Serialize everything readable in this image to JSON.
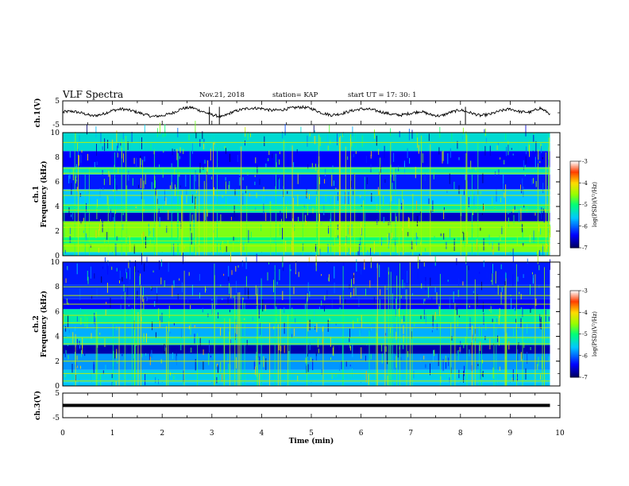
{
  "header": {
    "title": "VLF Spectra",
    "date": "Nov.21, 2018",
    "station": "station= KAP",
    "start": "start  UT =   17: 30: 1"
  },
  "chart_data": [
    {
      "type": "line",
      "name": "ch1-voltage",
      "ylabel": "ch.1(V)",
      "ylim": [
        -5,
        5
      ],
      "yticks": [
        -5,
        5
      ],
      "xlim": [
        0,
        10
      ],
      "x": [
        0,
        0.2,
        0.4,
        0.6,
        0.8,
        1.0,
        1.2,
        1.4,
        1.6,
        1.8,
        2.0,
        2.2,
        2.4,
        2.6,
        2.8,
        3.0,
        3.2,
        3.4,
        3.6,
        3.8,
        4.0,
        4.2,
        4.4,
        4.6,
        4.8,
        5.0,
        5.2,
        5.4,
        5.6,
        5.8,
        6.0,
        6.2,
        6.4,
        6.6,
        6.8,
        7.0,
        7.2,
        7.4,
        7.6,
        7.8,
        8.0,
        8.2,
        8.4,
        8.6,
        8.8,
        9.0,
        9.2,
        9.4,
        9.6,
        9.8
      ],
      "y": [
        0.4,
        0.6,
        -0.2,
        -1.4,
        -0.6,
        1.0,
        1.6,
        0.8,
        -0.4,
        -1.6,
        -1.2,
        -0.2,
        1.8,
        2.2,
        0.6,
        -0.8,
        -1.8,
        0.2,
        1.4,
        2.0,
        1.8,
        1.0,
        1.2,
        2.0,
        2.4,
        1.8,
        0.0,
        -1.0,
        -0.4,
        0.8,
        1.6,
        1.4,
        0.4,
        -0.6,
        -1.0,
        -0.2,
        0.6,
        -0.8,
        -1.4,
        0.2,
        1.2,
        0.0,
        -1.2,
        -0.6,
        0.8,
        1.6,
        0.4,
        0.2,
        2.0,
        -0.4
      ]
    },
    {
      "type": "heatmap",
      "name": "ch1-spectrogram",
      "ylabel": "ch.1\nFrequency (kHz)",
      "ylim": [
        0,
        10
      ],
      "yticks": [
        0,
        2,
        4,
        6,
        8,
        10
      ],
      "xlim": [
        0,
        10
      ],
      "data_end_min": 9.8,
      "colorbar": {
        "label": "log(PSD)(V²/Hz)",
        "range": [
          -7,
          -3
        ],
        "ticks": [
          -7,
          -6,
          -5,
          -4,
          -3
        ]
      },
      "bands_khz": [
        {
          "from": 0.0,
          "to": 0.3,
          "level": -5.5
        },
        {
          "from": 0.3,
          "to": 1.0,
          "level": -4.6
        },
        {
          "from": 1.0,
          "to": 1.5,
          "level": -5.0
        },
        {
          "from": 1.5,
          "to": 2.8,
          "level": -4.6
        },
        {
          "from": 2.8,
          "to": 3.5,
          "level": -6.6
        },
        {
          "from": 3.5,
          "to": 4.2,
          "level": -5.2
        },
        {
          "from": 4.2,
          "to": 5.4,
          "level": -5.6
        },
        {
          "from": 5.4,
          "to": 6.6,
          "level": -6.3
        },
        {
          "from": 6.6,
          "to": 7.2,
          "level": -5.3
        },
        {
          "from": 7.2,
          "to": 8.5,
          "level": -6.4
        },
        {
          "from": 8.5,
          "to": 10.0,
          "level": -5.4
        }
      ],
      "line_freqs_khz": [
        0.8,
        1.2,
        2.3,
        2.6,
        3.7,
        4.1,
        4.9,
        5.3,
        6.7,
        7.1,
        9.2
      ]
    },
    {
      "type": "heatmap",
      "name": "ch2-spectrogram",
      "ylabel": "ch.2\nFrequency (kHz)",
      "ylim": [
        0,
        10
      ],
      "yticks": [
        0,
        2,
        4,
        6,
        8,
        10
      ],
      "xlim": [
        0,
        10
      ],
      "data_end_min": 9.8,
      "colorbar": {
        "label": "log(PSD)(V²/Hz)",
        "range": [
          -7,
          -3
        ],
        "ticks": [
          -7,
          -6,
          -5,
          -4,
          -3
        ]
      },
      "bands_khz": [
        {
          "from": 0.0,
          "to": 0.3,
          "level": -5.6
        },
        {
          "from": 0.3,
          "to": 1.3,
          "level": -5.5
        },
        {
          "from": 1.3,
          "to": 2.6,
          "level": -5.8
        },
        {
          "from": 2.6,
          "to": 3.3,
          "level": -6.7
        },
        {
          "from": 3.3,
          "to": 4.0,
          "level": -5.4
        },
        {
          "from": 4.0,
          "to": 5.0,
          "level": -5.7
        },
        {
          "from": 5.0,
          "to": 6.2,
          "level": -5.2
        },
        {
          "from": 6.2,
          "to": 7.0,
          "level": -6.4
        },
        {
          "from": 7.0,
          "to": 8.2,
          "level": -6.2
        },
        {
          "from": 8.2,
          "to": 10.0,
          "level": -6.3
        }
      ],
      "line_freqs_khz": [
        0.4,
        1.0,
        2.0,
        3.4,
        3.9,
        4.7,
        5.1,
        5.7,
        6.6,
        7.3,
        8.0
      ]
    },
    {
      "type": "line",
      "name": "ch3-voltage",
      "ylabel": "ch.3(V)",
      "ylim": [
        -5,
        5
      ],
      "yticks": [
        -5,
        5
      ],
      "xlim": [
        0,
        10
      ],
      "x": [
        0,
        9.8
      ],
      "y": [
        0.0,
        0.0
      ]
    }
  ],
  "x_axis": {
    "label": "Time (min)",
    "ticks": [
      "0",
      "1",
      "2",
      "3",
      "4",
      "5",
      "6",
      "7",
      "8",
      "9",
      "10"
    ]
  }
}
